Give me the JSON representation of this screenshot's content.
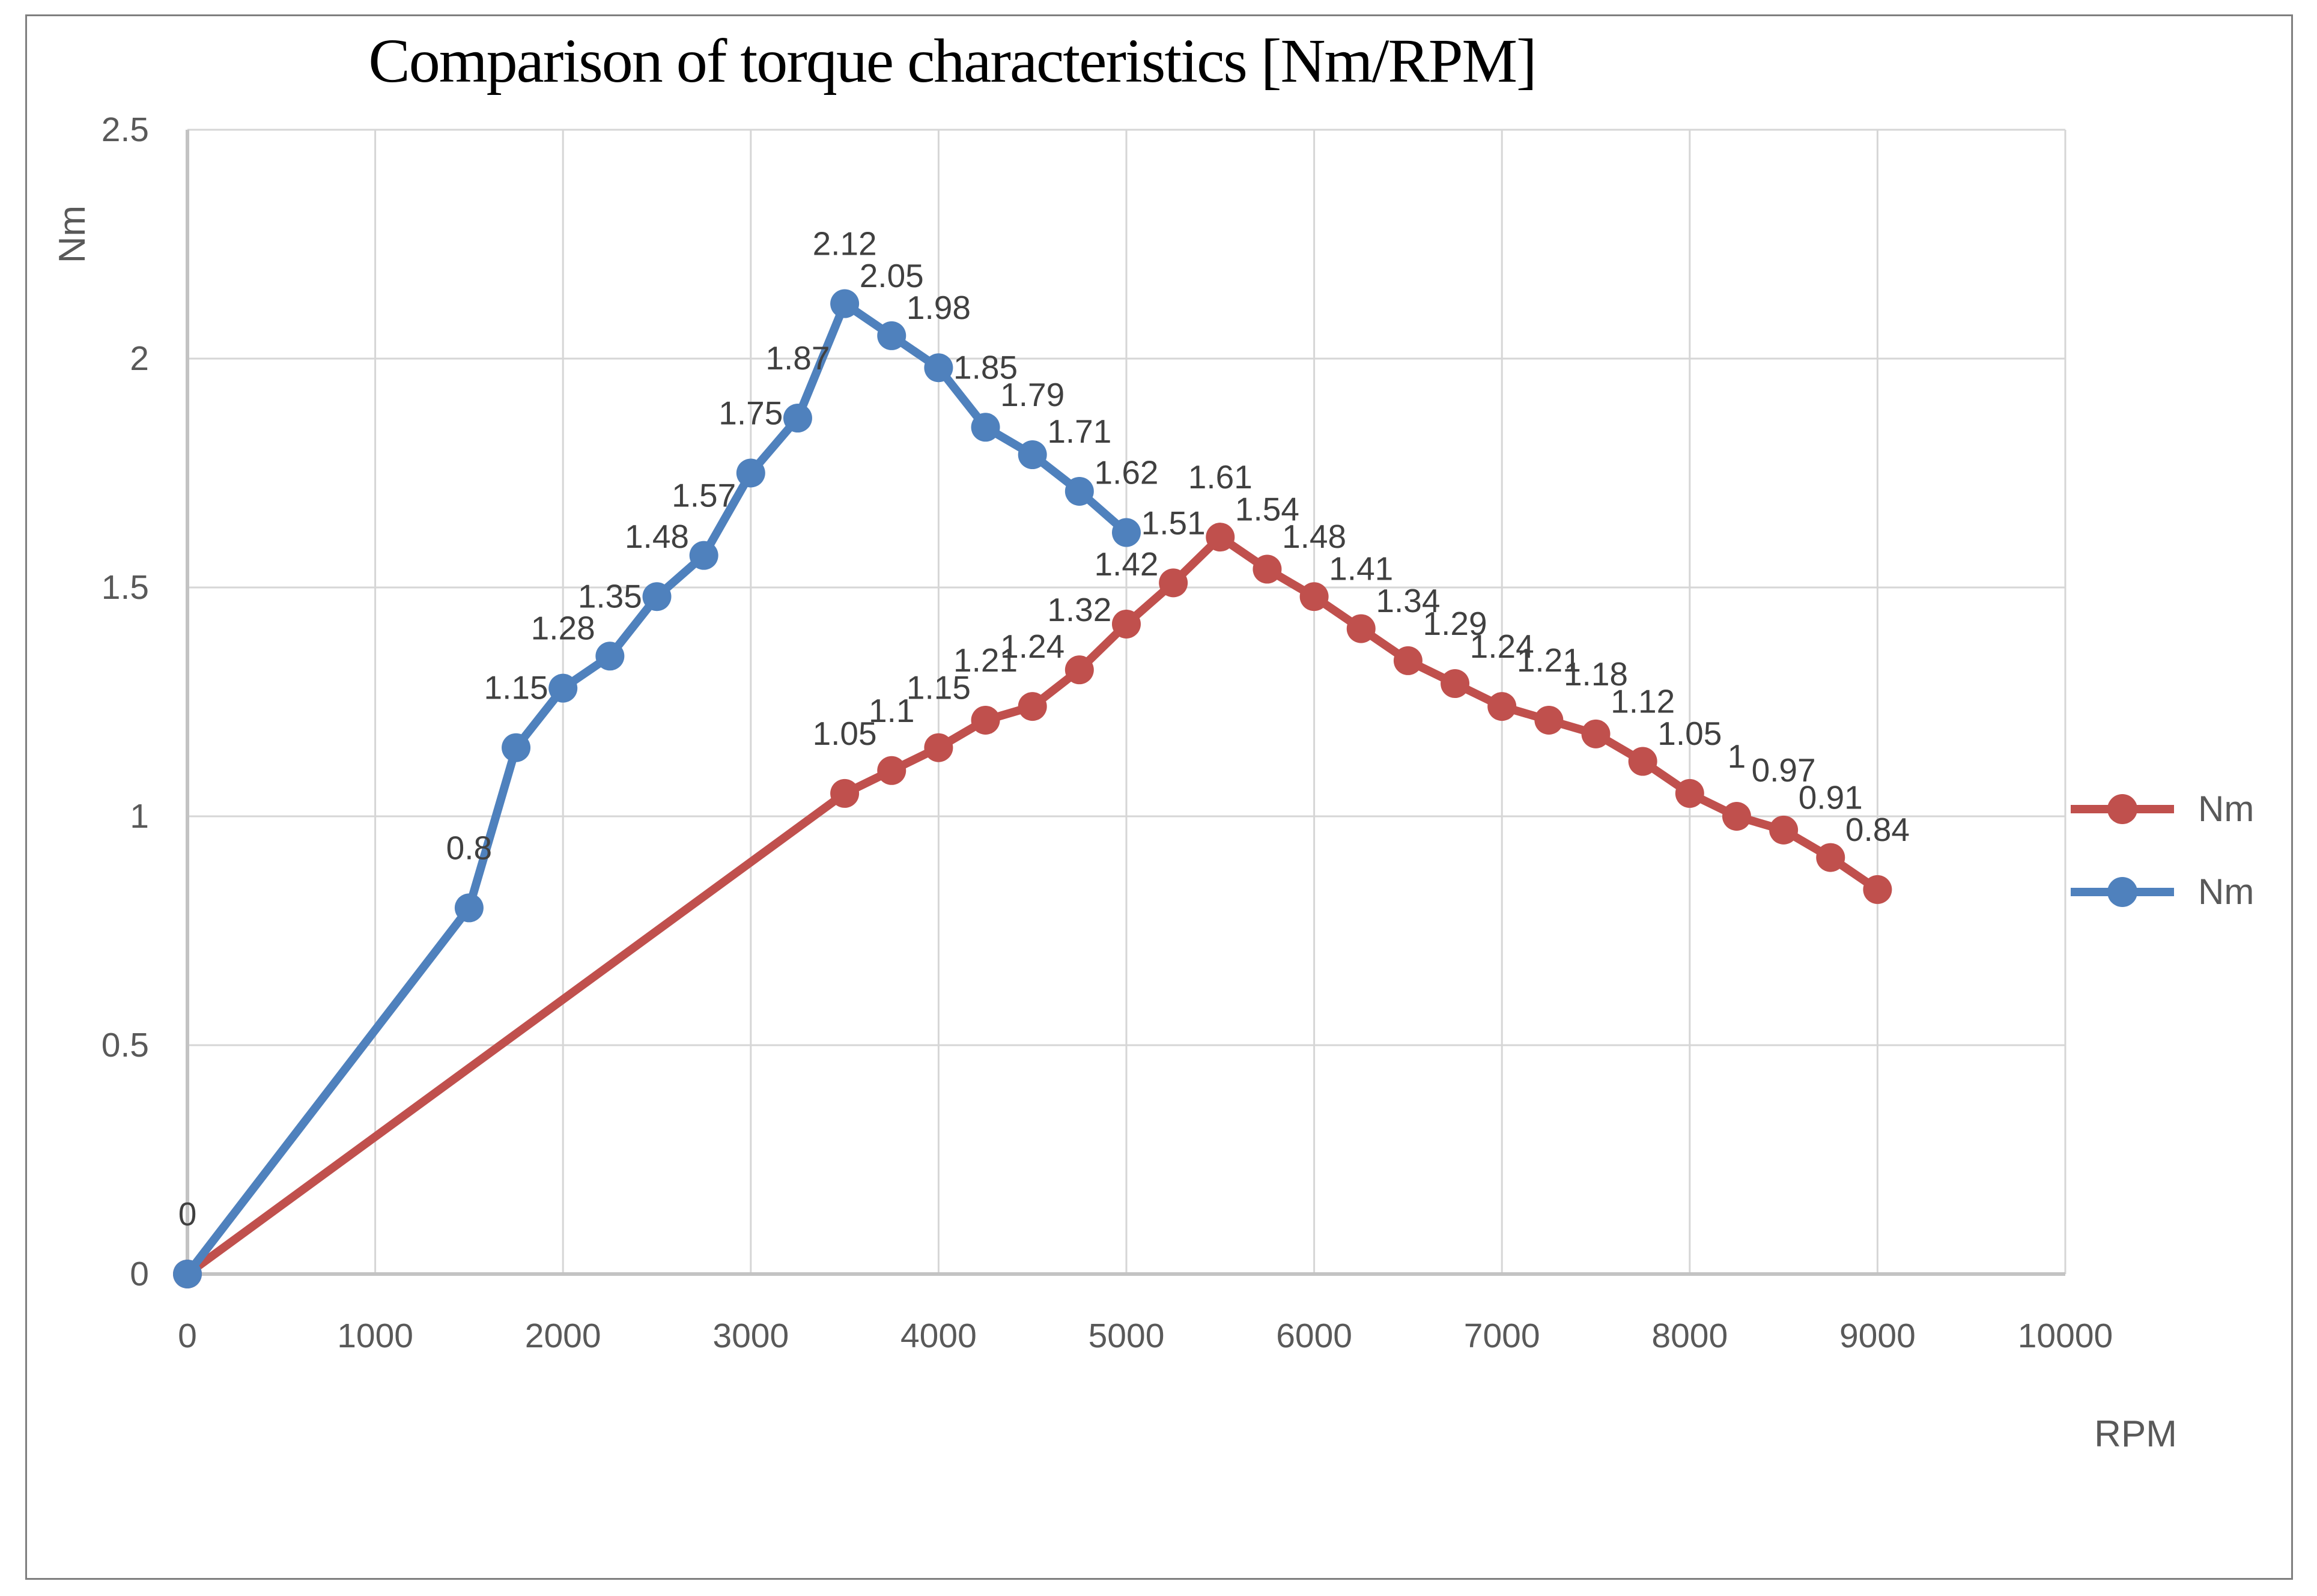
{
  "title": "Comparison of torque characteristics [Nm/RPM]",
  "axes": {
    "y_title": "Nm",
    "x_title": "RPM",
    "y_tick_labels": [
      "0",
      "0.5",
      "1",
      "1.5",
      "2",
      "2.5"
    ],
    "x_tick_labels": [
      "0",
      "1000",
      "2000",
      "3000",
      "4000",
      "5000",
      "6000",
      "7000",
      "8000",
      "9000",
      "10000"
    ]
  },
  "colors": {
    "series_red": "#c0504d",
    "series_blue": "#4f81bd",
    "gridline": "#d6d6d6",
    "axis_line": "#c3c3c3",
    "data_label": "#404040",
    "tick_label": "#595959",
    "frame_border": "#7f7f7f",
    "title_text": "#000000"
  },
  "chart_data": {
    "type": "line",
    "title": "Comparison of torque characteristics [Nm/RPM]",
    "xlabel": "RPM",
    "ylabel": "Nm",
    "xlim": [
      0,
      10000
    ],
    "ylim": [
      0,
      2.5
    ],
    "x_ticks": [
      0,
      1000,
      2000,
      3000,
      4000,
      5000,
      6000,
      7000,
      8000,
      9000,
      10000
    ],
    "y_ticks": [
      0,
      0.5,
      1,
      1.5,
      2,
      2.5
    ],
    "grid": true,
    "legend_position": "right",
    "marker": "circle",
    "data_labels_position": "above",
    "series": [
      {
        "name": "Nm",
        "color": "#c0504d",
        "x": [
          0,
          3500,
          3750,
          4000,
          4250,
          4500,
          4750,
          5000,
          5250,
          5500,
          5750,
          6000,
          6250,
          6500,
          6750,
          7000,
          7250,
          7500,
          7750,
          8000,
          8250,
          8500,
          8750,
          9000
        ],
        "y": [
          0,
          1.05,
          1.1,
          1.15,
          1.21,
          1.24,
          1.32,
          1.42,
          1.51,
          1.61,
          1.54,
          1.48,
          1.41,
          1.34,
          1.29,
          1.24,
          1.21,
          1.18,
          1.12,
          1.05,
          1,
          0.97,
          0.91,
          0.84
        ],
        "labels": [
          "",
          "1.05",
          "1.1",
          "1.15",
          "1.21",
          "1.24",
          "1.32",
          "1.42",
          "1.51",
          "1.61",
          "1.54",
          "1.48",
          "1.41",
          "1.34",
          "1.29",
          "1.24",
          "1.21",
          "1.18",
          "1.12",
          "1.05",
          "1",
          "0.97",
          "0.91",
          "0.84"
        ]
      },
      {
        "name": "Nm",
        "color": "#4f81bd",
        "x": [
          0,
          1500,
          1750,
          2000,
          2250,
          2500,
          2750,
          3000,
          3250,
          3500,
          3750,
          4000,
          4250,
          4500,
          4750,
          5000
        ],
        "y": [
          0,
          0.8,
          1.15,
          1.28,
          1.35,
          1.48,
          1.57,
          1.75,
          1.87,
          2.12,
          2.05,
          1.98,
          1.85,
          1.79,
          1.71,
          1.62
        ],
        "labels": [
          "0",
          "0.8",
          "1.15",
          "1.28",
          "1.35",
          "1.48",
          "1.57",
          "1.75",
          "1.87",
          "2.12",
          "2.05",
          "1.98",
          "1.85",
          "1.79",
          "1.71",
          "1.62"
        ]
      }
    ]
  }
}
